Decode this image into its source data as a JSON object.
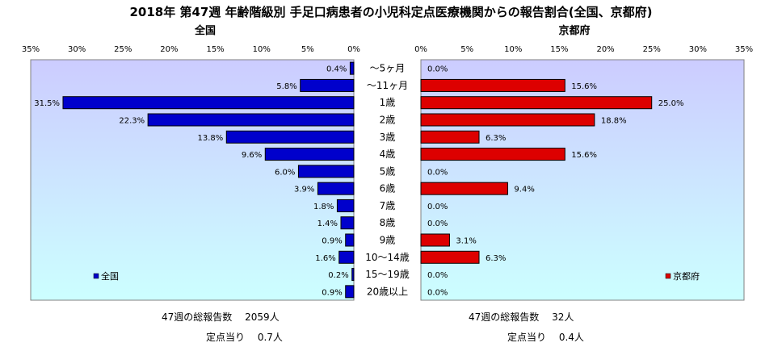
{
  "title": "2018年 第47週 年齢階級別 手足口病患者の小児科定点医療機関からの報告割合(全国、京都府)",
  "chart_data": [
    {
      "type": "bar",
      "orientation": "horizontal",
      "direction": "right-to-left",
      "title": "全国",
      "categories": [
        "～5ヶ月",
        "～11ヶ月",
        "1歳",
        "2歳",
        "3歳",
        "4歳",
        "5歳",
        "6歳",
        "7歳",
        "8歳",
        "9歳",
        "10～14歳",
        "15～19歳",
        "20歳以上"
      ],
      "series": [
        {
          "name": "全国",
          "values": [
            0.4,
            5.8,
            31.5,
            22.3,
            13.8,
            9.6,
            6.0,
            3.9,
            1.8,
            1.4,
            0.9,
            1.6,
            0.2,
            0.9
          ],
          "labels": [
            "0.4%",
            "5.8%",
            "31.5%",
            "22.3%",
            "13.8%",
            "9.6%",
            "6.0%",
            "3.9%",
            "1.8%",
            "1.4%",
            "0.9%",
            "1.6%",
            "0.2%",
            "0.9%"
          ],
          "color": "#0000cc"
        }
      ],
      "xlim": [
        0,
        35
      ],
      "ticks": [
        "35%",
        "30%",
        "25%",
        "20%",
        "15%",
        "10%",
        "5%",
        "0%"
      ],
      "legend": "bottom-left"
    },
    {
      "type": "bar",
      "orientation": "horizontal",
      "direction": "left-to-right",
      "title": "京都府",
      "categories": [
        "～5ヶ月",
        "～11ヶ月",
        "1歳",
        "2歳",
        "3歳",
        "4歳",
        "5歳",
        "6歳",
        "7歳",
        "8歳",
        "9歳",
        "10～14歳",
        "15～19歳",
        "20歳以上"
      ],
      "series": [
        {
          "name": "京都府",
          "values": [
            0.0,
            15.6,
            25.0,
            18.8,
            6.3,
            15.6,
            0.0,
            9.4,
            0.0,
            0.0,
            3.1,
            6.3,
            0.0,
            0.0
          ],
          "labels": [
            "0.0%",
            "15.6%",
            "25.0%",
            "18.8%",
            "6.3%",
            "15.6%",
            "0.0%",
            "9.4%",
            "0.0%",
            "0.0%",
            "3.1%",
            "6.3%",
            "0.0%",
            "0.0%"
          ],
          "color": "#dd0000"
        }
      ],
      "xlim": [
        0,
        35
      ],
      "ticks": [
        "0%",
        "5%",
        "10%",
        "15%",
        "20%",
        "25%",
        "30%",
        "35%"
      ],
      "legend": "bottom-right"
    }
  ],
  "footer": {
    "left": {
      "total_label": "47週の総報告数",
      "total_value": "2059人",
      "per_label": "定点当り",
      "per_value": "0.7人"
    },
    "right": {
      "total_label": "47週の総報告数",
      "total_value": "32人",
      "per_label": "定点当り",
      "per_value": "0.4人"
    }
  },
  "colors": {
    "plot_top": "#ccccff",
    "plot_bottom": "#ccffff",
    "left_bar": "#0000cc",
    "right_bar": "#dd0000"
  }
}
